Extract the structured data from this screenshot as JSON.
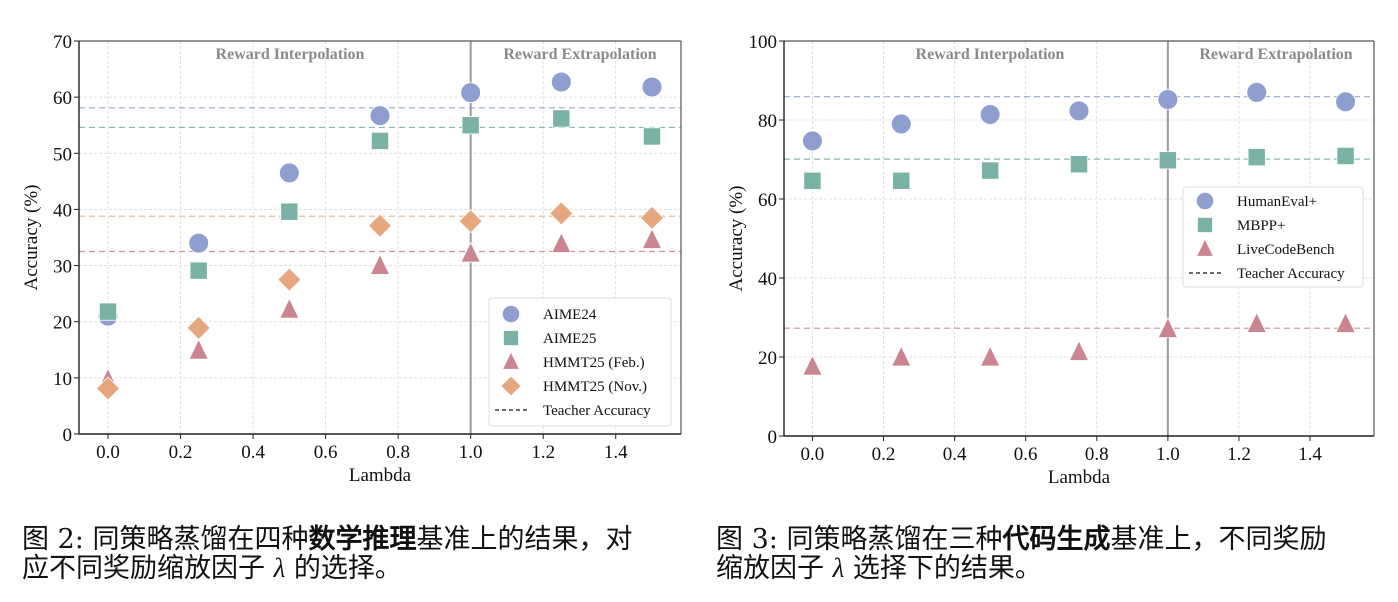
{
  "chart_data": [
    {
      "type": "scatter",
      "title": "",
      "xlabel": "Lambda",
      "ylabel": "Accuracy (%)",
      "xlim": [
        -0.08,
        1.58
      ],
      "ylim": [
        0,
        70
      ],
      "xticks": [
        "0.0",
        "0.2",
        "0.4",
        "0.6",
        "0.8",
        "1.0",
        "1.2",
        "1.4"
      ],
      "xtick_values": [
        0.0,
        0.2,
        0.4,
        0.6,
        0.8,
        1.0,
        1.2,
        1.4
      ],
      "yticks": [
        "0",
        "10",
        "20",
        "30",
        "40",
        "50",
        "60",
        "70"
      ],
      "ytick_values": [
        0,
        10,
        20,
        30,
        40,
        50,
        60,
        70
      ],
      "grid": true,
      "legend_position": "bottom-right",
      "divider_x": 1.0,
      "annotations": [
        {
          "text": "Reward Interpolation",
          "region": "left"
        },
        {
          "text": "Reward Extrapolation",
          "region": "right"
        }
      ],
      "x": [
        0.0,
        0.25,
        0.5,
        0.75,
        1.0,
        1.25,
        1.5
      ],
      "series": [
        {
          "name": "AIME24",
          "marker": "circle",
          "color": "#8E9FCF",
          "values": [
            21.0,
            34.0,
            46.5,
            56.7,
            60.8,
            62.7,
            61.8
          ],
          "teacher": 58.1
        },
        {
          "name": "AIME25",
          "marker": "square",
          "color": "#7BB2A6",
          "values": [
            21.8,
            29.1,
            39.6,
            52.2,
            55.0,
            56.2,
            53.0
          ],
          "teacher": 54.6
        },
        {
          "name": "HMMT25 (Feb.)",
          "marker": "triangle",
          "color": "#C98590",
          "values": [
            9.6,
            14.8,
            22.1,
            29.9,
            32.1,
            33.8,
            34.5
          ],
          "teacher": 32.5
        },
        {
          "name": "HMMT25 (Nov.)",
          "marker": "diamond",
          "color": "#E6A77E",
          "values": [
            8.1,
            18.9,
            27.5,
            37.1,
            37.9,
            39.3,
            38.5
          ],
          "teacher": 38.8
        }
      ],
      "teacher_legend": "Teacher Accuracy"
    },
    {
      "type": "scatter",
      "title": "",
      "xlabel": "Lambda",
      "ylabel": "Accuracy (%)",
      "xlim": [
        -0.08,
        1.58
      ],
      "ylim": [
        0,
        100
      ],
      "xticks": [
        "0.0",
        "0.2",
        "0.4",
        "0.6",
        "0.8",
        "1.0",
        "1.2",
        "1.4"
      ],
      "xtick_values": [
        0.0,
        0.2,
        0.4,
        0.6,
        0.8,
        1.0,
        1.2,
        1.4
      ],
      "yticks": [
        "0",
        "20",
        "40",
        "60",
        "80",
        "100"
      ],
      "ytick_values": [
        0,
        20,
        40,
        60,
        80,
        100
      ],
      "grid": true,
      "legend_position": "center-right",
      "divider_x": 1.0,
      "annotations": [
        {
          "text": "Reward Interpolation",
          "region": "left"
        },
        {
          "text": "Reward Extrapolation",
          "region": "right"
        }
      ],
      "x": [
        0.0,
        0.25,
        0.5,
        0.75,
        1.0,
        1.25,
        1.5
      ],
      "series": [
        {
          "name": "HumanEval+",
          "marker": "circle",
          "color": "#8E9FCF",
          "values": [
            74.7,
            79.0,
            81.4,
            82.3,
            85.2,
            87.0,
            84.6
          ],
          "teacher": 85.9
        },
        {
          "name": "MBPP+",
          "marker": "square",
          "color": "#7BB2A6",
          "values": [
            64.6,
            64.6,
            67.2,
            68.8,
            69.8,
            70.6,
            70.9
          ],
          "teacher": 70.1
        },
        {
          "name": "LiveCodeBench",
          "marker": "triangle",
          "color": "#C98590",
          "values": [
            17.5,
            19.8,
            19.8,
            21.2,
            27.0,
            28.3,
            28.3
          ],
          "teacher": 27.3
        }
      ],
      "teacher_legend": "Teacher Accuracy"
    }
  ],
  "captions": [
    {
      "prefix": "图 2: 同策略蒸馏在四种",
      "bold": "数学推理",
      "middle": "基准上的结果，对",
      "line2_pre": "应不同奖励缩放因子 ",
      "lambda": "λ",
      "line2_post": " 的选择。"
    },
    {
      "prefix": "图 3: 同策略蒸馏在三种",
      "bold": "代码生成",
      "middle": "基准上，不同奖励",
      "line2_pre": "缩放因子 ",
      "lambda": "λ",
      "line2_post": " 选择下的结果。"
    }
  ]
}
